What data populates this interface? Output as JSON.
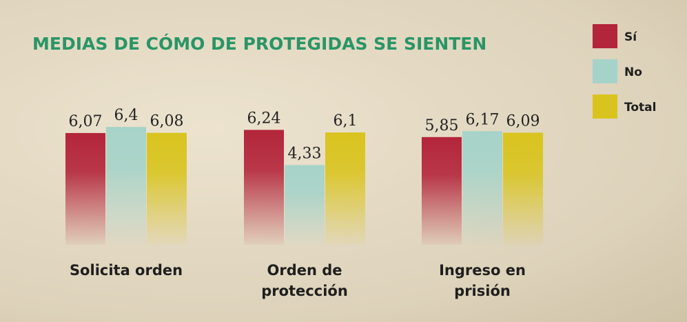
{
  "chart_data": {
    "type": "bar",
    "title": "MEDIAS DE CÓMO DE PROTEGIDAS SE SIENTEN",
    "categories": [
      "Solicita orden",
      "Orden de protección",
      "Ingreso en prisión"
    ],
    "series": [
      {
        "name": "Sí",
        "color": "#b3253a",
        "values": [
          6.07,
          6.24,
          5.85
        ],
        "value_labels": [
          "6,07",
          "6,24",
          "5,85"
        ]
      },
      {
        "name": "No",
        "color": "#a6d3c9",
        "values": [
          6.4,
          4.33,
          6.17
        ],
        "value_labels": [
          "6,4",
          "4,33",
          "6,17"
        ]
      },
      {
        "name": "Total",
        "color": "#d9c41f",
        "values": [
          6.08,
          6.1,
          6.09
        ],
        "value_labels": [
          "6,08",
          "6,1",
          "6,09"
        ]
      }
    ]
  }
}
